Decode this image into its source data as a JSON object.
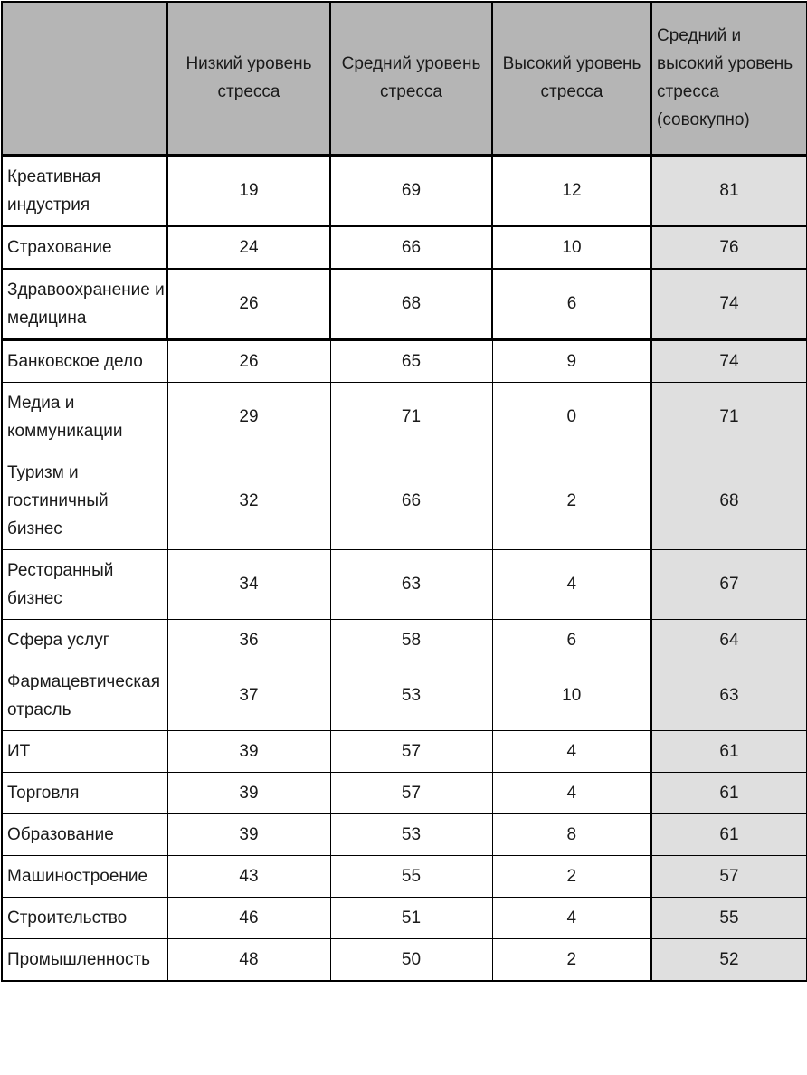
{
  "colors": {
    "header_bg": "#b5b5b5",
    "combined_column_bg": "#dfdfdf",
    "border": "#000000",
    "text": "#1a1a1a",
    "page_bg": "#ffffff"
  },
  "chart_data": {
    "type": "table",
    "columns": [
      "",
      "Низкий уровень стресса",
      "Средний уровень стресса",
      "Высокий уровень стресса",
      "Средний и высокий уровень стресса (совокупно)"
    ],
    "rows": [
      {
        "label": "Креативная индустрия",
        "values": [
          19,
          69,
          12,
          81
        ]
      },
      {
        "label": "Страхование",
        "values": [
          24,
          66,
          10,
          76
        ]
      },
      {
        "label": "Здравоохранение и медицина",
        "values": [
          26,
          68,
          6,
          74
        ]
      },
      {
        "label": "Банковское дело",
        "values": [
          26,
          65,
          9,
          74
        ]
      },
      {
        "label": "Медиа и коммуникации",
        "values": [
          29,
          71,
          0,
          71
        ]
      },
      {
        "label": "Туризм и гостиничный бизнес",
        "values": [
          32,
          66,
          2,
          68
        ]
      },
      {
        "label": "Ресторанный бизнес",
        "values": [
          34,
          63,
          4,
          67
        ]
      },
      {
        "label": "Сфера услуг",
        "values": [
          36,
          58,
          6,
          64
        ]
      },
      {
        "label": "Фармацевтическая отрасль",
        "values": [
          37,
          53,
          10,
          63
        ]
      },
      {
        "label": "ИТ",
        "values": [
          39,
          57,
          4,
          61
        ]
      },
      {
        "label": "Торговля",
        "values": [
          39,
          57,
          4,
          61
        ]
      },
      {
        "label": "Образование",
        "values": [
          39,
          53,
          8,
          61
        ]
      },
      {
        "label": "Машиностроение",
        "values": [
          43,
          55,
          2,
          57
        ]
      },
      {
        "label": "Строительство",
        "values": [
          46,
          51,
          4,
          55
        ]
      },
      {
        "label": "Промышленность",
        "values": [
          48,
          50,
          2,
          52
        ]
      }
    ]
  }
}
